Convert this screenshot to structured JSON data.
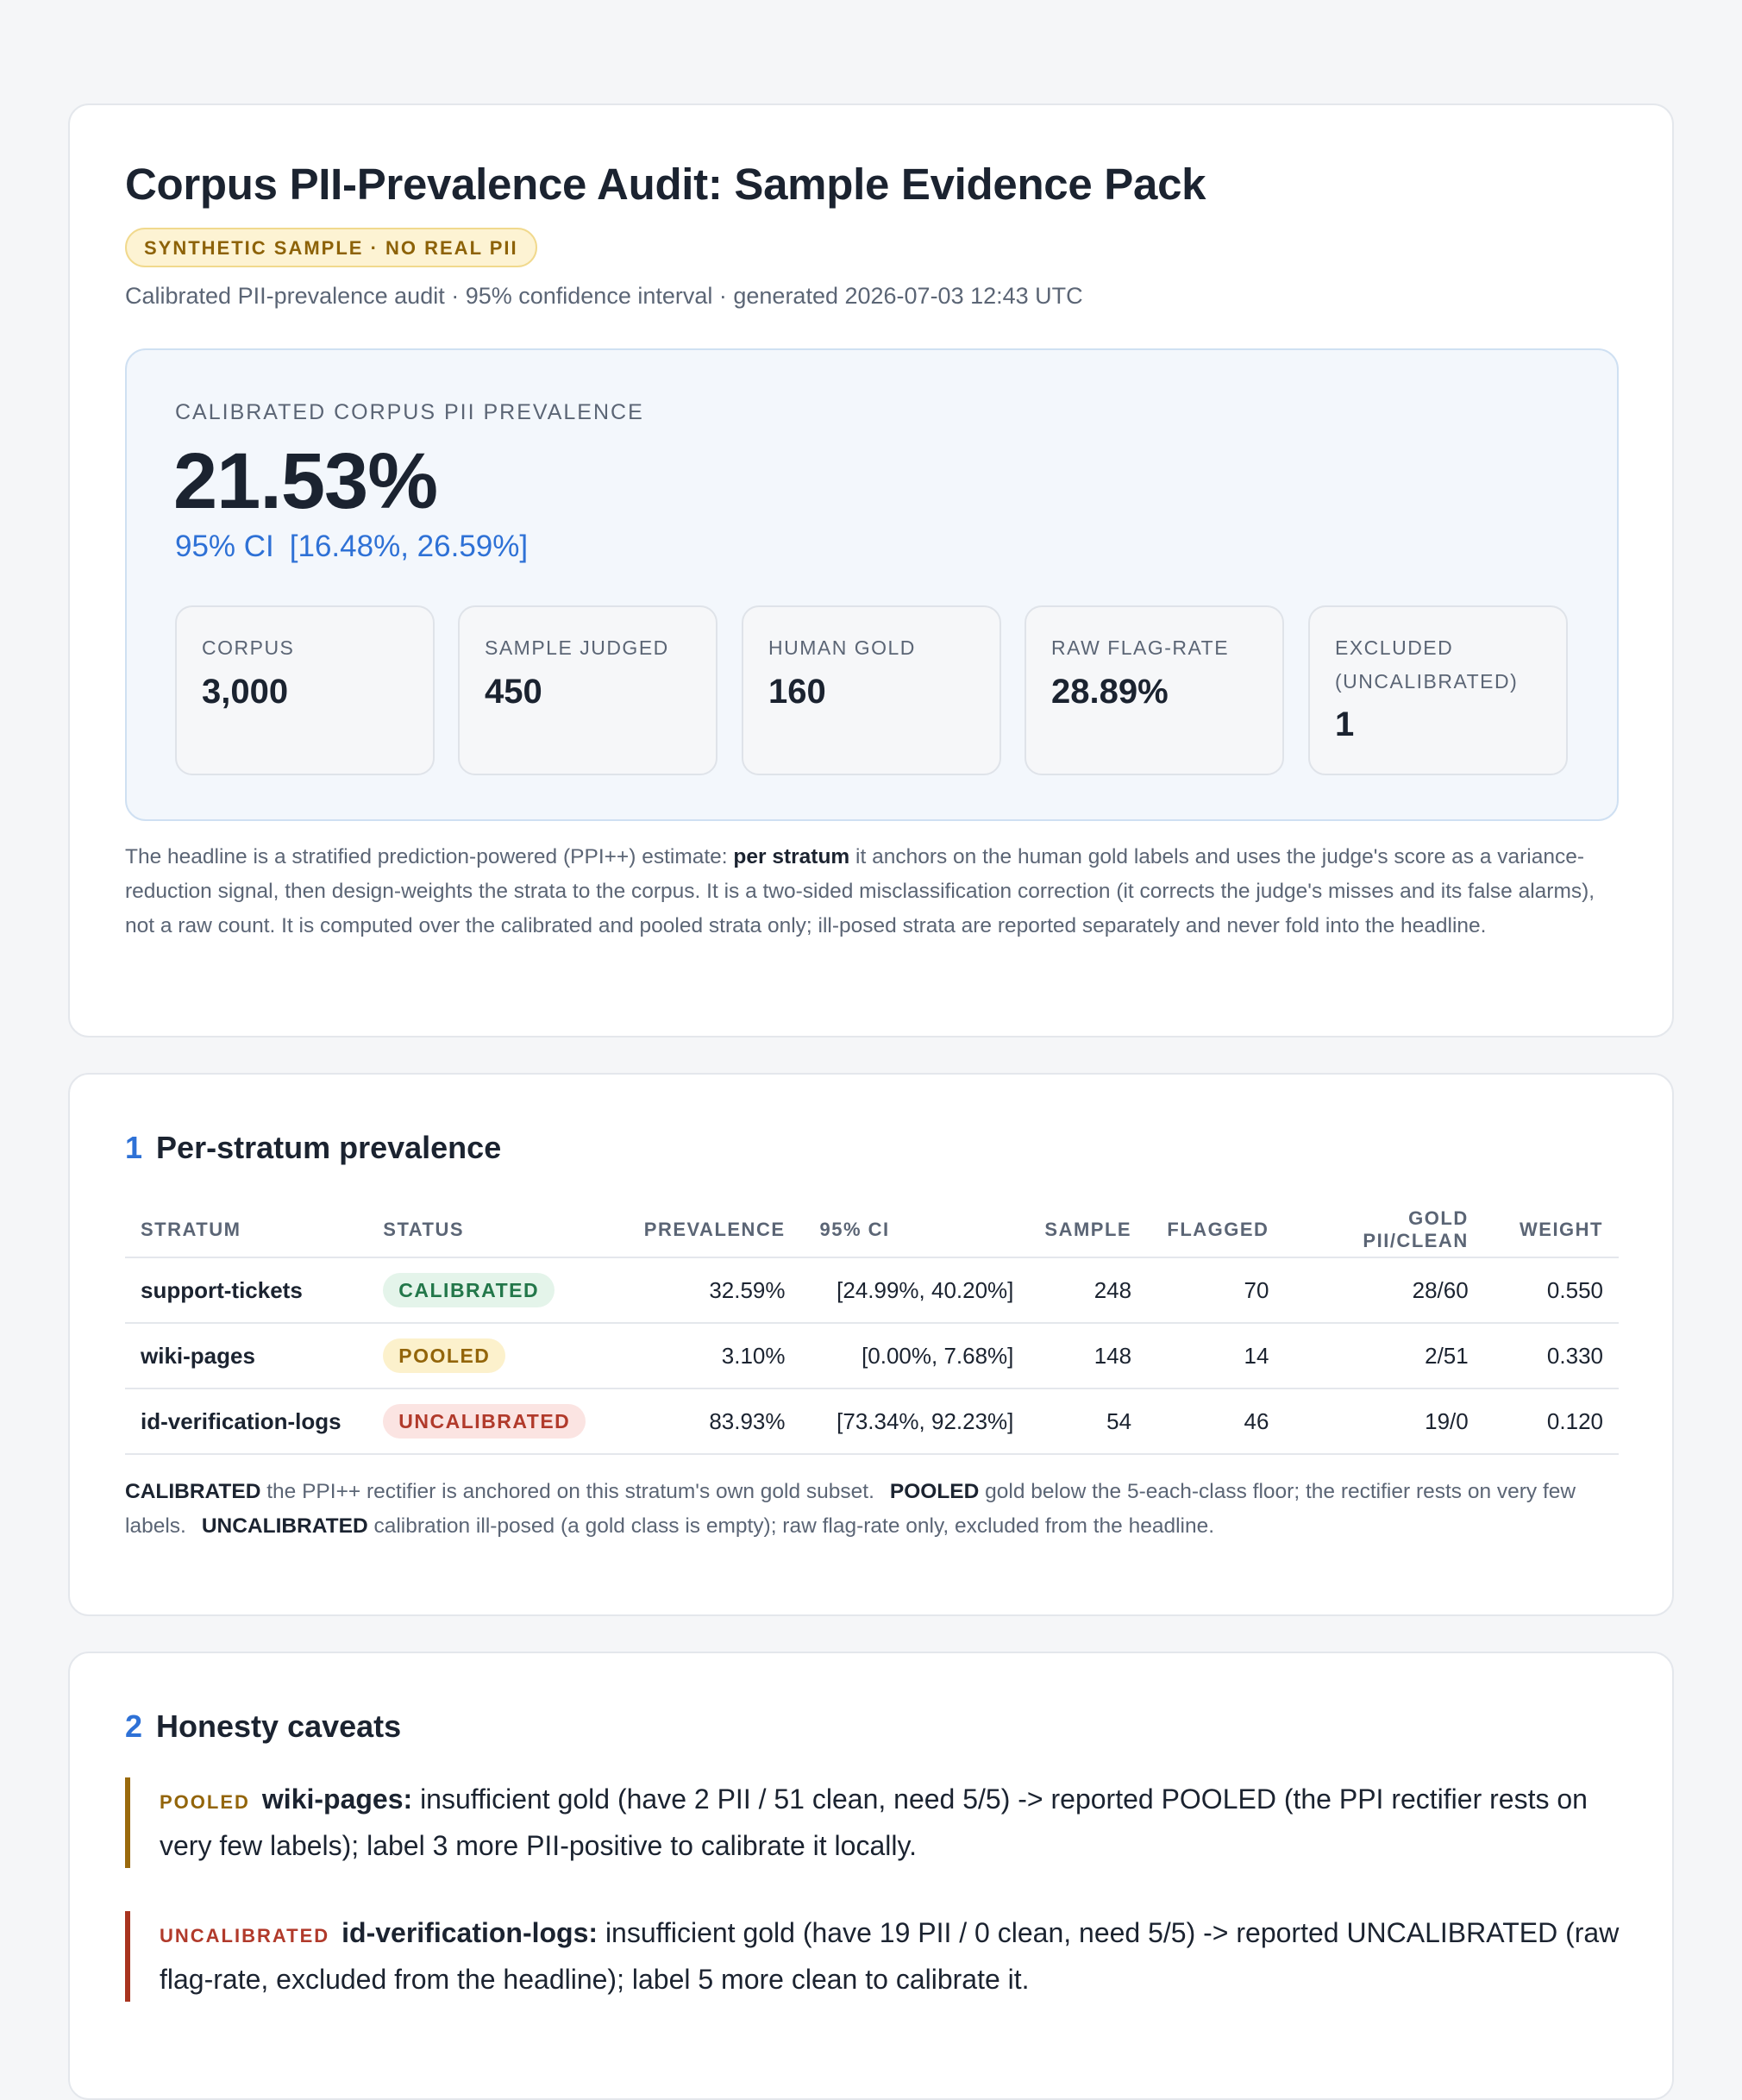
{
  "header": {
    "title": "Corpus PII-Prevalence Audit: Sample Evidence Pack",
    "badge": "SYNTHETIC SAMPLE · NO REAL PII",
    "subtitle": "Calibrated PII-prevalence audit · 95% confidence interval · generated 2026-07-03 12:43 UTC"
  },
  "hero": {
    "label": "CALIBRATED CORPUS PII PREVALENCE",
    "value": "21.53%",
    "ci_label": "95% CI",
    "ci_value": "[16.48%, 26.59%]",
    "stats": [
      {
        "label": "CORPUS",
        "value": "3,000"
      },
      {
        "label": "SAMPLE JUDGED",
        "value": "450"
      },
      {
        "label": "HUMAN GOLD",
        "value": "160"
      },
      {
        "label": "RAW FLAG-RATE",
        "value": "28.89%"
      },
      {
        "label": "EXCLUDED (UNCALIBRATED)",
        "value": "1"
      }
    ]
  },
  "explanation": {
    "part1": "The headline is a stratified prediction-powered (PPI++) estimate: ",
    "bold": "per stratum",
    "part2": " it anchors on the human gold labels and uses the judge's score as a variance-reduction signal, then design-weights the strata to the corpus. It is a two-sided misclassification correction (it corrects the judge's misses and its false alarms), not a raw count. It is computed over the calibrated and pooled strata only; ill-posed strata are reported separately and never fold into the headline."
  },
  "strata_section": {
    "number": "1",
    "title": "Per-stratum prevalence",
    "columns": {
      "stratum": "STRATUM",
      "status": "STATUS",
      "prevalence": "PREVALENCE",
      "ci": "95% CI",
      "sample": "SAMPLE",
      "flagged": "FLAGGED",
      "gold": "GOLD PII/CLEAN",
      "weight": "WEIGHT"
    },
    "rows": [
      {
        "stratum": "support-tickets",
        "status": "CALIBRATED",
        "prevalence": "32.59%",
        "ci": "[24.99%, 40.20%]",
        "sample": "248",
        "flagged": "70",
        "gold": "28/60",
        "weight": "0.550"
      },
      {
        "stratum": "wiki-pages",
        "status": "POOLED",
        "prevalence": "3.10%",
        "ci": "[0.00%, 7.68%]",
        "sample": "148",
        "flagged": "14",
        "gold": "2/51",
        "weight": "0.330"
      },
      {
        "stratum": "id-verification-logs",
        "status": "UNCALIBRATED",
        "prevalence": "83.93%",
        "ci": "[73.34%, 92.23%]",
        "sample": "54",
        "flagged": "46",
        "gold": "19/0",
        "weight": "0.120"
      }
    ],
    "legend": {
      "calibrated_term": "CALIBRATED",
      "calibrated_desc": " the PPI++ rectifier is anchored on this stratum's own gold subset.",
      "pooled_term": "POOLED",
      "pooled_desc": " gold below the 5-each-class floor; the rectifier rests on very few labels.",
      "uncalibrated_term": "UNCALIBRATED",
      "uncalibrated_desc": " calibration ill-posed (a gold class is empty); raw flag-rate only, excluded from the headline."
    }
  },
  "caveats_section": {
    "number": "2",
    "title": "Honesty caveats",
    "items": [
      {
        "tag": "POOLED",
        "name": "wiki-pages:",
        "text": " insufficient gold (have 2 PII / 51 clean, need 5/5) -> reported POOLED (the PPI rectifier rests on very few labels); label 3 more PII-positive to calibrate it locally."
      },
      {
        "tag": "UNCALIBRATED",
        "name": "id-verification-logs:",
        "text": " insufficient gold (have 19 PII / 0 clean, need 5/5) -> reported UNCALIBRATED (raw flag-rate, excluded from the headline); label 5 more clean to calibrate it."
      }
    ]
  },
  "colors": {
    "accent": "#2e71d6",
    "calibrated": "#23774a",
    "pooled": "#93650a",
    "uncalibrated": "#b13a2b"
  }
}
